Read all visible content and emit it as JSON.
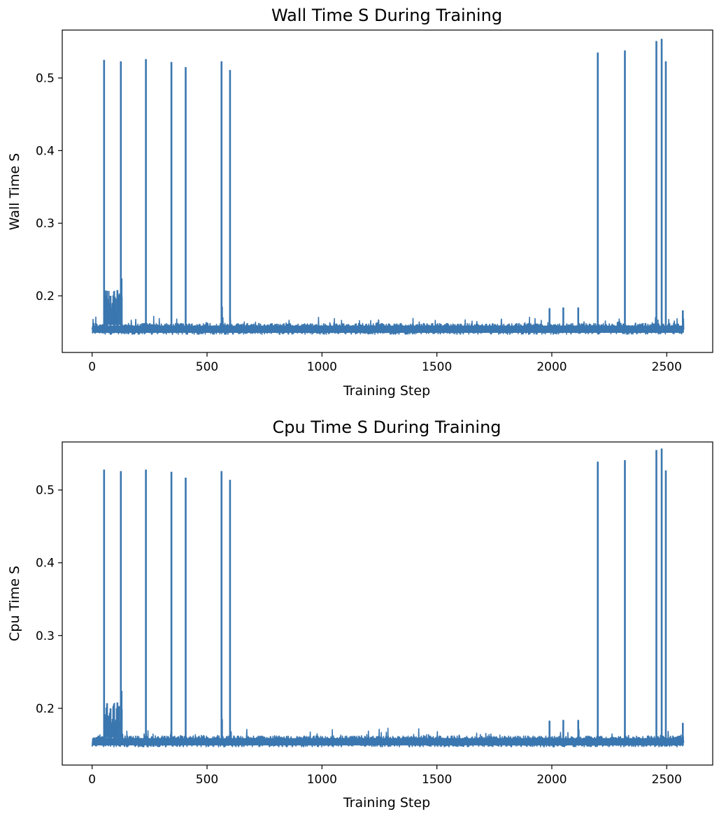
{
  "chart_data": [
    {
      "type": "line",
      "title": "Wall Time S During Training",
      "xlabel": "Training Step",
      "ylabel": "Wall Time S",
      "xlim": [
        -130,
        2700
      ],
      "ylim": [
        0.122,
        0.566
      ],
      "xticks": [
        0,
        500,
        1000,
        1500,
        2000,
        2500
      ],
      "yticks": [
        0.2,
        0.3,
        0.4,
        0.5
      ],
      "grid": false,
      "legend": "none",
      "color": "#3a76af",
      "baseline": {
        "low": 0.147,
        "high": 0.162,
        "max_step": 2574
      },
      "series": [
        {
          "spikes": [
            {
              "x": 52,
              "y": 0.525
            },
            {
              "x": 125,
              "y": 0.523
            },
            {
              "x": 234,
              "y": 0.526
            },
            {
              "x": 345,
              "y": 0.522
            },
            {
              "x": 407,
              "y": 0.515
            },
            {
              "x": 563,
              "y": 0.523
            },
            {
              "x": 600,
              "y": 0.511
            },
            {
              "x": 2200,
              "y": 0.535
            },
            {
              "x": 2318,
              "y": 0.538
            },
            {
              "x": 2455,
              "y": 0.551
            },
            {
              "x": 2478,
              "y": 0.554
            },
            {
              "x": 2496,
              "y": 0.523
            }
          ],
          "bumps": [
            {
              "x": 65,
              "y": 0.207
            },
            {
              "x": 80,
              "y": 0.2
            },
            {
              "x": 95,
              "y": 0.206
            },
            {
              "x": 110,
              "y": 0.208
            },
            {
              "x": 128,
              "y": 0.224
            },
            {
              "x": 565,
              "y": 0.185
            },
            {
              "x": 1990,
              "y": 0.183
            },
            {
              "x": 2050,
              "y": 0.184
            },
            {
              "x": 2115,
              "y": 0.184
            },
            {
              "x": 2570,
              "y": 0.18
            }
          ]
        }
      ]
    },
    {
      "type": "line",
      "title": "Cpu Time S During Training",
      "xlabel": "Training Step",
      "ylabel": "Cpu Time S",
      "xlim": [
        -130,
        2700
      ],
      "ylim": [
        0.122,
        0.566
      ],
      "xticks": [
        0,
        500,
        1000,
        1500,
        2000,
        2500
      ],
      "yticks": [
        0.2,
        0.3,
        0.4,
        0.5
      ],
      "grid": false,
      "legend": "none",
      "color": "#3a76af",
      "baseline": {
        "low": 0.147,
        "high": 0.162,
        "max_step": 2574
      },
      "series": [
        {
          "spikes": [
            {
              "x": 52,
              "y": 0.528
            },
            {
              "x": 125,
              "y": 0.526
            },
            {
              "x": 234,
              "y": 0.528
            },
            {
              "x": 345,
              "y": 0.525
            },
            {
              "x": 407,
              "y": 0.517
            },
            {
              "x": 563,
              "y": 0.526
            },
            {
              "x": 600,
              "y": 0.514
            },
            {
              "x": 2200,
              "y": 0.539
            },
            {
              "x": 2318,
              "y": 0.541
            },
            {
              "x": 2455,
              "y": 0.555
            },
            {
              "x": 2478,
              "y": 0.557
            },
            {
              "x": 2496,
              "y": 0.527
            }
          ],
          "bumps": [
            {
              "x": 65,
              "y": 0.207
            },
            {
              "x": 80,
              "y": 0.2
            },
            {
              "x": 95,
              "y": 0.206
            },
            {
              "x": 110,
              "y": 0.208
            },
            {
              "x": 128,
              "y": 0.224
            },
            {
              "x": 565,
              "y": 0.185
            },
            {
              "x": 1990,
              "y": 0.183
            },
            {
              "x": 2050,
              "y": 0.184
            },
            {
              "x": 2115,
              "y": 0.184
            },
            {
              "x": 2570,
              "y": 0.18
            }
          ]
        }
      ]
    }
  ]
}
